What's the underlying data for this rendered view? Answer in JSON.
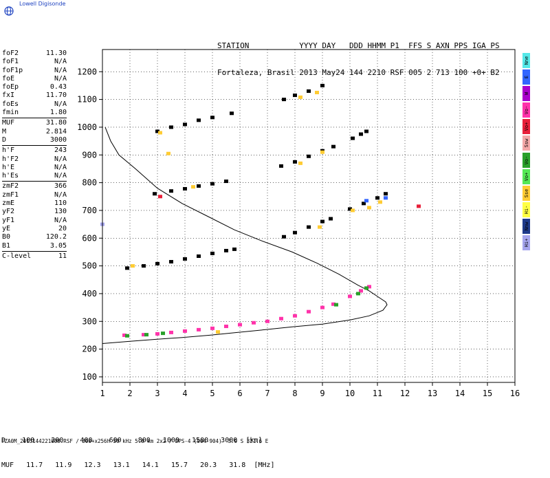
{
  "brand": {
    "name": "Lowell Digisonde",
    "color": "#1a3fbf"
  },
  "header": {
    "line1": "STATION           YYYY DAY   DDD HHMM P1  FFS S AXN PPS IGA PS",
    "line2": "Fortaleza, Brasil 2013 May24 144 2210 RSF 005 2 713 100 +0+ B2"
  },
  "params": [
    [
      {
        "label": "foF2",
        "value": "11.30"
      },
      {
        "label": "foF1",
        "value": "N/A"
      },
      {
        "label": "foF1p",
        "value": "N/A"
      },
      {
        "label": "foE",
        "value": "N/A"
      },
      {
        "label": "foEp",
        "value": "0.43"
      },
      {
        "label": "fxI",
        "value": "11.70"
      },
      {
        "label": "foEs",
        "value": "N/A"
      },
      {
        "label": "fmin",
        "value": "1.80"
      }
    ],
    [
      {
        "label": "MUF",
        "value": "31.80"
      },
      {
        "label": "M",
        "value": "2.814"
      },
      {
        "label": "D",
        "value": "3000"
      }
    ],
    [
      {
        "label": "h'F",
        "value": "243"
      },
      {
        "label": "h'F2",
        "value": "N/A"
      },
      {
        "label": "h'E",
        "value": "N/A"
      },
      {
        "label": "h'Es",
        "value": "N/A"
      }
    ],
    [
      {
        "label": "zmF2",
        "value": "366"
      },
      {
        "label": "zmF1",
        "value": "N/A"
      },
      {
        "label": "zmE",
        "value": "110"
      },
      {
        "label": "yF2",
        "value": "130"
      },
      {
        "label": "yF1",
        "value": "N/A"
      },
      {
        "label": "yE",
        "value": "20"
      },
      {
        "label": "B0",
        "value": "120.2"
      },
      {
        "label": "B1",
        "value": "3.05"
      }
    ],
    [
      {
        "label": "C-level",
        "value": "11"
      }
    ]
  ],
  "legend": [
    {
      "label": "Nne",
      "color": "#55e8e8"
    },
    {
      "label": "E",
      "color": "#3366ff"
    },
    {
      "label": "W",
      "color": "#aa00cc"
    },
    {
      "label": "Vo-",
      "color": "#ff33aa"
    },
    {
      "label": "Vo+",
      "color": "#e8203a"
    },
    {
      "label": "Ssw",
      "color": "#f4a8a8"
    },
    {
      "label": "Vo-",
      "color": "#2aa02a"
    },
    {
      "label": "Vo+",
      "color": "#55e855"
    },
    {
      "label": "Sse",
      "color": "#ffcc33"
    },
    {
      "label": "Hi-",
      "color": "#ffff44"
    },
    {
      "label": "Nnw",
      "color": "#1e3a8a"
    },
    {
      "label": "Hi+",
      "color": "#a6a6ee"
    }
  ],
  "chart_data": {
    "type": "scatter",
    "title": "",
    "xlabel": "",
    "ylabel": "",
    "xlim": [
      1,
      16
    ],
    "ylim": [
      80,
      1280
    ],
    "xticks": [
      1,
      2,
      3,
      4,
      5,
      6,
      7,
      8,
      9,
      10,
      11,
      12,
      13,
      14,
      15,
      16
    ],
    "yticks": [
      100,
      200,
      300,
      400,
      500,
      600,
      700,
      800,
      900,
      1000,
      1100,
      1200
    ],
    "grid": true,
    "series": [
      {
        "color": "#ff33aa",
        "points": [
          [
            1.8,
            250
          ],
          [
            2.5,
            252
          ],
          [
            3.0,
            255
          ],
          [
            3.5,
            260
          ],
          [
            4.0,
            265
          ],
          [
            4.5,
            270
          ],
          [
            5.0,
            275
          ],
          [
            5.5,
            282
          ],
          [
            6.0,
            288
          ],
          [
            6.5,
            295
          ],
          [
            7.0,
            300
          ],
          [
            7.5,
            310
          ],
          [
            8.0,
            320
          ],
          [
            8.5,
            335
          ],
          [
            9.0,
            350
          ],
          [
            9.4,
            362
          ],
          [
            10.0,
            390
          ],
          [
            10.4,
            410
          ],
          [
            10.7,
            425
          ]
        ]
      },
      {
        "color": "#000000",
        "points": [
          [
            1.9,
            492
          ],
          [
            2.5,
            500
          ],
          [
            3.0,
            508
          ],
          [
            3.5,
            515
          ],
          [
            4.0,
            525
          ],
          [
            4.5,
            535
          ],
          [
            5.0,
            545
          ],
          [
            5.5,
            555
          ],
          [
            5.8,
            560
          ],
          [
            2.9,
            760
          ],
          [
            3.5,
            770
          ],
          [
            4.0,
            778
          ],
          [
            4.5,
            788
          ],
          [
            5.0,
            796
          ],
          [
            5.5,
            805
          ],
          [
            7.6,
            605
          ],
          [
            8.0,
            620
          ],
          [
            8.5,
            640
          ],
          [
            9.0,
            660
          ],
          [
            9.3,
            670
          ],
          [
            7.5,
            860
          ],
          [
            8.0,
            875
          ],
          [
            8.5,
            895
          ],
          [
            9.0,
            915
          ],
          [
            9.4,
            930
          ],
          [
            10.0,
            705
          ],
          [
            10.5,
            725
          ],
          [
            11.0,
            745
          ],
          [
            11.3,
            760
          ],
          [
            10.1,
            960
          ],
          [
            10.4,
            975
          ],
          [
            10.6,
            985
          ],
          [
            7.6,
            1100
          ],
          [
            8.0,
            1115
          ],
          [
            8.5,
            1130
          ],
          [
            9.0,
            1150
          ],
          [
            3.0,
            985
          ],
          [
            3.5,
            1000
          ],
          [
            4.0,
            1010
          ],
          [
            4.5,
            1025
          ],
          [
            5.0,
            1035
          ],
          [
            5.7,
            1050
          ]
        ]
      },
      {
        "color": "#ffcc33",
        "points": [
          [
            8.2,
            1108
          ],
          [
            8.8,
            1125
          ],
          [
            10.1,
            700
          ],
          [
            10.7,
            710
          ],
          [
            11.1,
            730
          ],
          [
            8.2,
            870
          ],
          [
            9.0,
            910
          ],
          [
            8.9,
            640
          ],
          [
            3.4,
            905
          ],
          [
            3.1,
            980
          ],
          [
            2.1,
            500
          ],
          [
            4.3,
            785
          ],
          [
            5.2,
            262
          ]
        ]
      },
      {
        "color": "#2aa02a",
        "points": [
          [
            1.9,
            248
          ],
          [
            2.6,
            252
          ],
          [
            3.2,
            257
          ],
          [
            9.5,
            360
          ],
          [
            10.3,
            400
          ],
          [
            10.6,
            420
          ]
        ]
      },
      {
        "color": "#3366ff",
        "points": [
          [
            11.3,
            745
          ],
          [
            10.6,
            735
          ]
        ]
      },
      {
        "color": "#e8203a",
        "points": [
          [
            12.5,
            715
          ],
          [
            3.1,
            750
          ]
        ]
      },
      {
        "color": "#a6a6ee",
        "points": [
          [
            1.0,
            650
          ]
        ]
      }
    ],
    "profile": [
      [
        1.1,
        1000
      ],
      [
        1.3,
        950
      ],
      [
        1.6,
        900
      ],
      [
        2.2,
        850
      ],
      [
        3.0,
        780
      ],
      [
        3.9,
        725
      ],
      [
        4.8,
        680
      ],
      [
        5.8,
        630
      ],
      [
        6.8,
        590
      ],
      [
        7.9,
        550
      ],
      [
        8.8,
        510
      ],
      [
        9.6,
        470
      ],
      [
        10.3,
        430
      ],
      [
        10.7,
        410
      ],
      [
        11.0,
        390
      ],
      [
        11.3,
        370
      ],
      [
        11.35,
        360
      ],
      [
        11.2,
        340
      ],
      [
        10.7,
        320
      ],
      [
        10.0,
        305
      ],
      [
        9.0,
        290
      ],
      [
        7.9,
        280
      ],
      [
        6.9,
        270
      ],
      [
        5.9,
        260
      ],
      [
        4.9,
        250
      ],
      [
        3.9,
        242
      ],
      [
        2.9,
        235
      ],
      [
        2.0,
        228
      ],
      [
        1.0,
        220
      ]
    ],
    "profile_color": "#000000"
  },
  "muf_table": {
    "d_label": "D",
    "d_values": [
      "100",
      "200",
      "400",
      "600",
      "800",
      "1000",
      "1500",
      "3000"
    ],
    "d_unit": "[km]",
    "muf_label": "MUF",
    "muf_values": [
      "11.7",
      "11.9",
      "12.3",
      "13.1",
      "14.1",
      "15.7",
      "20.3",
      "31.8"
    ],
    "muf_unit": "[MHz]"
  },
  "footer": "FZA0M_2013144221000.RSF / 300+x256h 50 kHz 5.0 km 2x2 / DPS-4 (904-904)  3.9 S 321.6 E"
}
